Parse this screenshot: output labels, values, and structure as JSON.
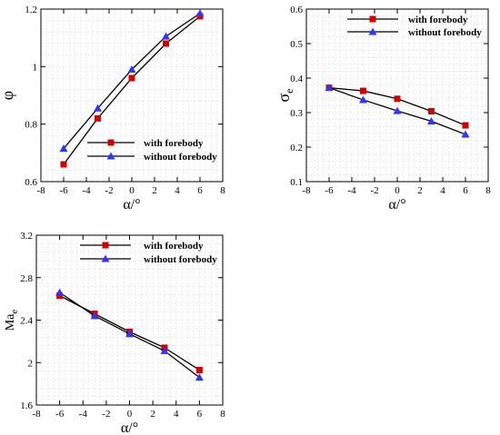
{
  "chart_data": [
    {
      "type": "line",
      "ylabel": "φ",
      "xlabel": "α/°",
      "xlim": [
        -8,
        8
      ],
      "ylim": [
        0.6,
        1.2
      ],
      "xticks": [
        "-8",
        "-6",
        "-4",
        "-2",
        "0",
        "2",
        "4",
        "6",
        "8"
      ],
      "yticks": [
        "0.6",
        "0.8",
        "1",
        "1.2"
      ],
      "grid": true,
      "legend_position": "lower-right",
      "x": [
        -6,
        -3,
        0,
        3,
        6
      ],
      "series": [
        {
          "name": "with forebody",
          "color": "#d40000",
          "marker": "square",
          "values": [
            0.66,
            0.82,
            0.96,
            1.08,
            1.175
          ]
        },
        {
          "name": "without forebody",
          "color": "#3333ff",
          "marker": "triangle",
          "values": [
            0.715,
            0.855,
            0.99,
            1.105,
            1.185
          ]
        }
      ]
    },
    {
      "type": "line",
      "ylabel": "σ",
      "ylabel_sub": "e",
      "xlabel": "α/°",
      "xlim": [
        -8,
        8
      ],
      "ylim": [
        0.1,
        0.6
      ],
      "xticks": [
        "-8",
        "-6",
        "-4",
        "-2",
        "0",
        "2",
        "4",
        "6",
        "8"
      ],
      "yticks": [
        "0.1",
        "0.2",
        "0.3",
        "0.4",
        "0.5",
        "0.6"
      ],
      "grid": true,
      "legend_position": "top-right",
      "x": [
        -6,
        -3,
        0,
        3,
        6
      ],
      "series": [
        {
          "name": "with forebody",
          "color": "#d40000",
          "marker": "square",
          "values": [
            0.372,
            0.363,
            0.34,
            0.304,
            0.263
          ]
        },
        {
          "name": "without forebody",
          "color": "#3333ff",
          "marker": "triangle",
          "values": [
            0.372,
            0.337,
            0.305,
            0.275,
            0.237
          ]
        }
      ]
    },
    {
      "type": "line",
      "ylabel": "Ma",
      "ylabel_sub": "e",
      "xlabel": "α/°",
      "xlim": [
        -8,
        8
      ],
      "ylim": [
        1.6,
        3.2
      ],
      "xticks": [
        "-8",
        "-6",
        "-4",
        "-2",
        "0",
        "2",
        "4",
        "6",
        "8"
      ],
      "yticks": [
        "1.6",
        "2",
        "2.4",
        "2.8",
        "3.2"
      ],
      "grid": true,
      "legend_position": "top-right",
      "x": [
        -6,
        -3,
        0,
        3,
        6
      ],
      "series": [
        {
          "name": "with forebody",
          "color": "#d40000",
          "marker": "square",
          "values": [
            2.63,
            2.46,
            2.29,
            2.14,
            1.93
          ]
        },
        {
          "name": "without forebody",
          "color": "#3333ff",
          "marker": "triangle",
          "values": [
            2.66,
            2.44,
            2.27,
            2.11,
            1.86
          ]
        }
      ]
    }
  ]
}
